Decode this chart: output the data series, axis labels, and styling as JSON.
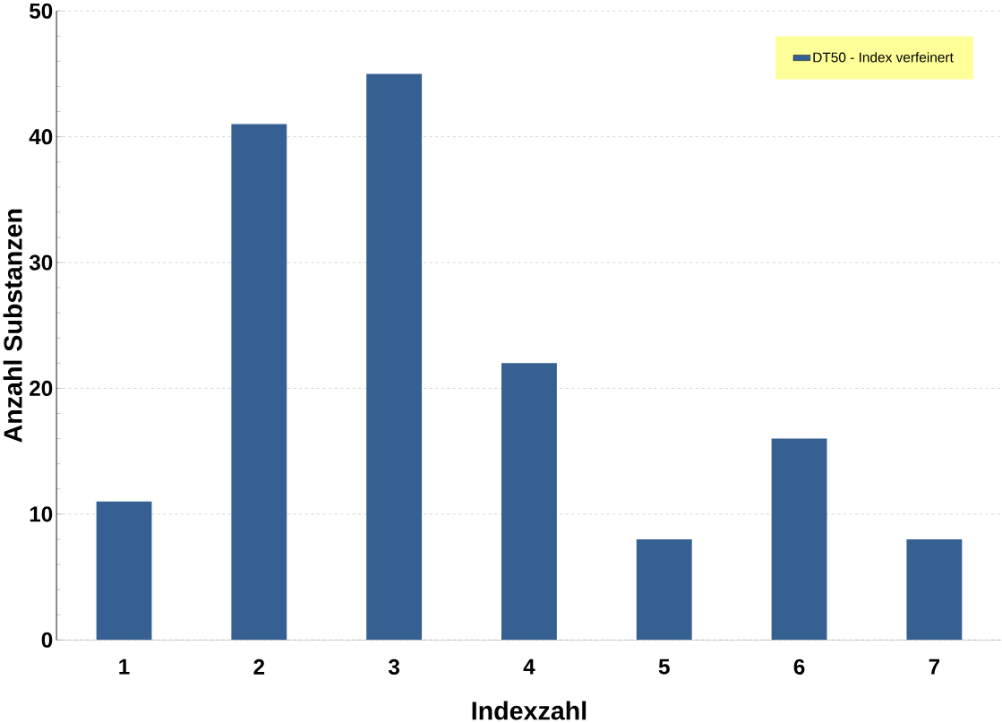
{
  "chart_data": {
    "type": "bar",
    "xlabel": "Indexzahl",
    "ylabel": "Anzahl Substanzen",
    "categories": [
      "1",
      "2",
      "3",
      "4",
      "5",
      "6",
      "7"
    ],
    "series": [
      {
        "name": "DT50 - Index verfeinert",
        "color": "#376092",
        "values": [
          11,
          41,
          45,
          22,
          8,
          16,
          8
        ]
      }
    ],
    "ylim": [
      0,
      50
    ],
    "yticks": [
      0,
      10,
      20,
      30,
      40,
      50
    ],
    "grid": "y",
    "legend": "top right"
  }
}
